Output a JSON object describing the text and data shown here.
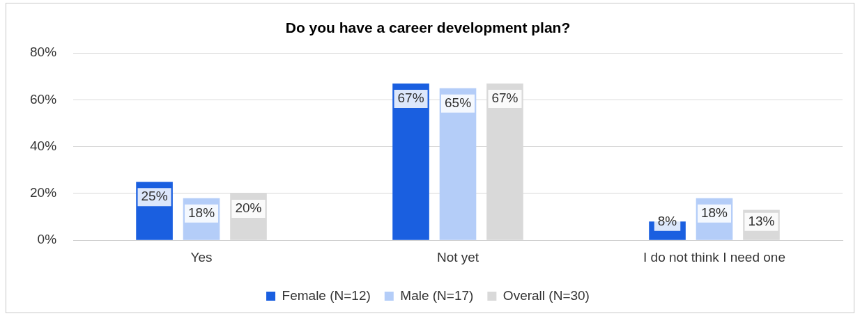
{
  "chart_data": {
    "type": "bar",
    "title": "Do you have a career development plan?",
    "categories": [
      "Yes",
      "Not yet",
      "I do not think I need one"
    ],
    "series": [
      {
        "name": "Female (N=12)",
        "color": "#1a5fe0",
        "values": [
          25,
          67,
          8
        ],
        "value_labels": [
          "25%",
          "67%",
          "8%"
        ]
      },
      {
        "name": "Male (N=17)",
        "color": "#b4cdf8",
        "values": [
          18,
          65,
          18
        ],
        "value_labels": [
          "18%",
          "65%",
          "18%"
        ]
      },
      {
        "name": "Overall (N=30)",
        "color": "#d9d9d9",
        "values": [
          20,
          67,
          13
        ],
        "value_labels": [
          "20%",
          "67%",
          "13%"
        ]
      }
    ],
    "ylim": [
      0,
      80
    ],
    "yticks": [
      {
        "value": 0,
        "label": "0%"
      },
      {
        "value": 20,
        "label": "20%"
      },
      {
        "value": 40,
        "label": "40%"
      },
      {
        "value": 60,
        "label": "60%"
      },
      {
        "value": 80,
        "label": "80%"
      }
    ],
    "grid": "y",
    "legend": "bottom"
  }
}
